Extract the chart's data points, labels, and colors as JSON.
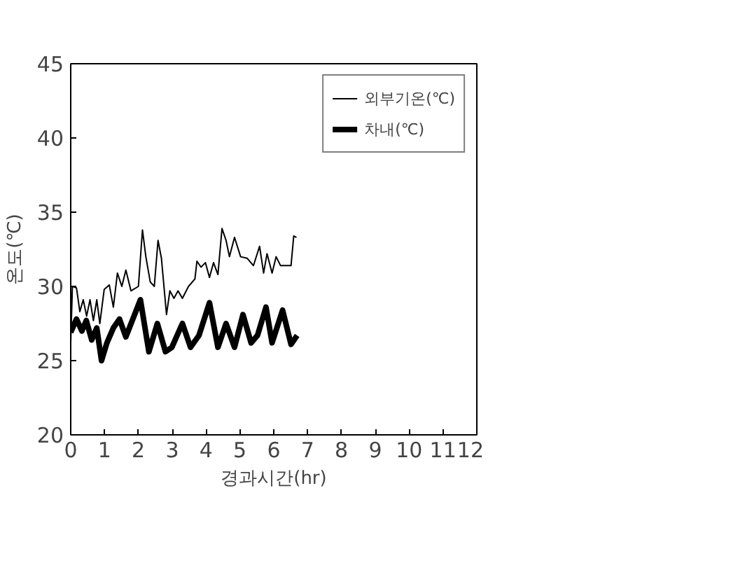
{
  "chart_data": {
    "type": "line",
    "xlabel": "경과시간(hr)",
    "ylabel": "온도(℃)",
    "xlim": [
      0,
      12
    ],
    "xticks": [
      0,
      1,
      2,
      3,
      4,
      5,
      6,
      7,
      8,
      9,
      10,
      11,
      12
    ],
    "ylim": [
      20,
      45
    ],
    "yticks": [
      20,
      25,
      30,
      35,
      40,
      45
    ],
    "grid": false,
    "legend": "top right",
    "marker": "none",
    "line_style": "solid",
    "series": [
      {
        "name": "외부기온(℃)",
        "color": "#000000",
        "x": [
          0,
          0.05,
          0.17,
          0.27,
          0.37,
          0.47,
          0.57,
          0.67,
          0.77,
          0.86,
          0.99,
          1.14,
          1.26,
          1.38,
          1.51,
          1.63,
          1.78,
          2.0,
          2.12,
          2.22,
          2.35,
          2.47,
          2.58,
          2.68,
          2.83,
          2.93,
          3.05,
          3.17,
          3.3,
          3.48,
          3.67,
          3.73,
          3.85,
          3.98,
          4.1,
          4.22,
          4.35,
          4.47,
          4.59,
          4.69,
          4.84,
          5.02,
          5.21,
          5.4,
          5.58,
          5.7,
          5.8,
          5.95,
          6.07,
          6.2,
          6.51,
          6.59,
          6.67
        ],
        "values": [
          26.2,
          30,
          29.9,
          28.3,
          29.1,
          28,
          29.1,
          27.7,
          29.1,
          27.5,
          29.8,
          30.1,
          28.6,
          30.9,
          30,
          31.1,
          29.7,
          30,
          33.8,
          32,
          30.3,
          30,
          33.1,
          31.9,
          28.1,
          29.7,
          29.2,
          29.7,
          29.2,
          30,
          30.5,
          31.7,
          31.3,
          31.6,
          30.6,
          31.6,
          30.8,
          33.9,
          33.1,
          32,
          33.3,
          32,
          31.9,
          31.4,
          32.7,
          30.9,
          32.2,
          30.9,
          32,
          31.4,
          31.4,
          33.4,
          33.3
        ]
      },
      {
        "name": "차내(℃)",
        "color": "#000000",
        "x": [
          0,
          0.17,
          0.33,
          0.46,
          0.62,
          0.77,
          0.91,
          1.07,
          1.26,
          1.44,
          1.63,
          2.06,
          2.31,
          2.56,
          2.8,
          2.99,
          3.3,
          3.54,
          3.79,
          4.1,
          4.35,
          4.59,
          4.84,
          5.09,
          5.33,
          5.52,
          5.77,
          5.95,
          6.26,
          6.51,
          6.69
        ],
        "values": [
          26.9,
          27.8,
          27,
          27.7,
          26.4,
          27.2,
          25,
          26.2,
          27.2,
          27.8,
          26.6,
          29.1,
          25.6,
          27.5,
          25.6,
          25.9,
          27.5,
          25.9,
          26.7,
          28.9,
          25.9,
          27.5,
          25.9,
          28.1,
          26.2,
          26.7,
          28.6,
          26.2,
          28.4,
          26.1,
          26.7
        ]
      }
    ]
  }
}
